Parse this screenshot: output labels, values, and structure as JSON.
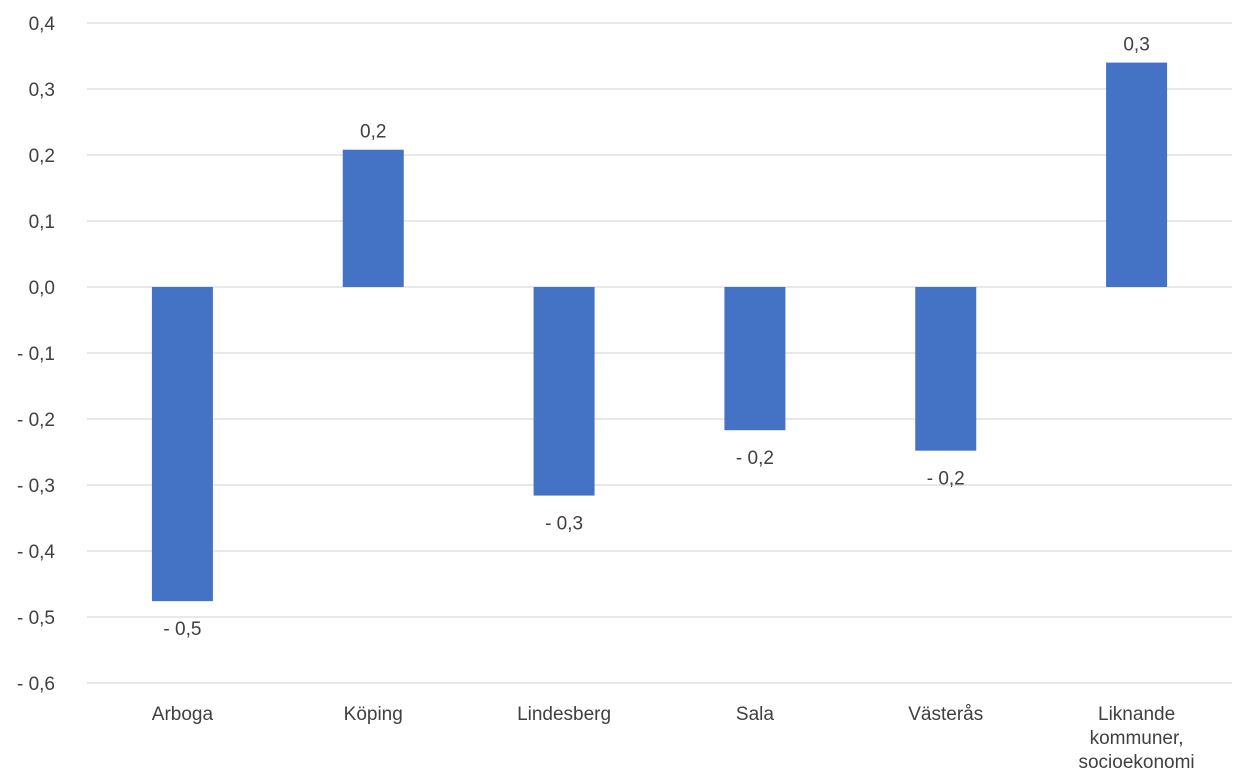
{
  "chart_data": {
    "type": "bar",
    "title": "",
    "xlabel": "",
    "ylabel": "",
    "categories": [
      [
        "Arboga"
      ],
      [
        "Köping"
      ],
      [
        "Lindesberg"
      ],
      [
        "Sala"
      ],
      [
        "Västerås"
      ],
      [
        "Liknande",
        "kommuner,",
        "socioekonomi"
      ]
    ],
    "values": [
      -0.476,
      0.208,
      -0.316,
      -0.217,
      -0.248,
      0.34
    ],
    "data_labels": [
      "- 0,5",
      "0,2",
      "- 0,3",
      "- 0,2",
      "- 0,2",
      "0,3"
    ],
    "ylim": [
      -0.6,
      0.4
    ],
    "yticks": [
      0.4,
      0.3,
      0.2,
      0.1,
      0.0,
      -0.1,
      -0.2,
      -0.3,
      -0.4,
      -0.5,
      -0.6
    ],
    "ytick_labels": [
      "0,4",
      "0,3",
      "0,2",
      "0,1",
      "0,0",
      "- 0,1",
      "- 0,2",
      "- 0,3",
      "- 0,4",
      "- 0,5",
      "- 0,6"
    ],
    "grid": true,
    "legend": "none",
    "bar_color": "#4472c4"
  }
}
